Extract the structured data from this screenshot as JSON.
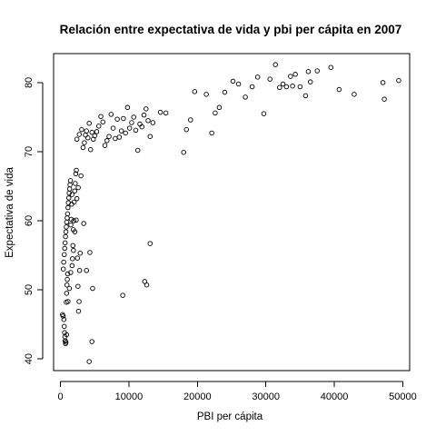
{
  "chart_data": {
    "type": "scatter",
    "title": "Relación entre expectativa de vida y pbi per cápita en 2007",
    "xlabel": "PBI per cápita",
    "ylabel": "Expectativa de vida",
    "xlim": [
      -1000,
      51000
    ],
    "ylim": [
      38.3,
      84.2
    ],
    "xticks": [
      0,
      10000,
      20000,
      30000,
      40000,
      50000
    ],
    "xtick_labels": [
      "0",
      "10000",
      "20000",
      "30000",
      "40000",
      "50000"
    ],
    "yticks": [
      40,
      50,
      60,
      70,
      80
    ],
    "ytick_labels": [
      "40",
      "50",
      "60",
      "70",
      "80"
    ],
    "grid": false,
    "legend": "none",
    "marker": "open-circle",
    "colors": {
      "points": "#000000",
      "axes": "#000000",
      "background": "#ffffff"
    },
    "x": [
      300,
      400,
      500,
      550,
      600,
      650,
      700,
      750,
      800,
      850,
      900,
      950,
      1000,
      1050,
      420,
      480,
      560,
      620,
      680,
      740,
      800,
      860,
      920,
      980,
      1040,
      1100,
      1160,
      1220,
      1280,
      1340,
      1400,
      1460,
      1520,
      1580,
      1640,
      1700,
      1760,
      1820,
      1880,
      1940,
      2000,
      2080,
      2160,
      2240,
      2320,
      2400,
      2480,
      2560,
      2640,
      2720,
      2800,
      2880,
      700,
      900,
      1100,
      1300,
      1500,
      1700,
      1900,
      2100,
      2300,
      2600,
      3000,
      3400,
      3800,
      4200,
      4600,
      2400,
      2750,
      3100,
      3300,
      3500,
      3650,
      3800,
      4000,
      4200,
      4400,
      4600,
      4800,
      5000,
      5300,
      5600,
      5900,
      6200,
      6500,
      6800,
      7100,
      7400,
      7700,
      8000,
      8300,
      8600,
      8900,
      9200,
      9500,
      9800,
      10100,
      10400,
      10700,
      11000,
      11300,
      11600,
      11900,
      12200,
      12500,
      12800,
      13100,
      13500,
      4300,
      4700,
      9100,
      12300,
      12600,
      13100,
      14600,
      15400,
      18000,
      18400,
      19000,
      19600,
      21300,
      22100,
      22600,
      23200,
      24000,
      25200,
      26000,
      27000,
      28000,
      28800,
      29700,
      30600,
      31400,
      32000,
      33000,
      33600,
      34300,
      35000,
      35800,
      36500,
      37500,
      39500,
      40700,
      42900,
      47100,
      47300,
      49400,
      36200,
      32500,
      33900
    ],
    "y": [
      46.4,
      46.2,
      45.7,
      44.7,
      43.8,
      43.2,
      42.6,
      42.2,
      42.4,
      48.2,
      49.5,
      50.7,
      51.5,
      52.3,
      53.0,
      54.0,
      55.1,
      56.0,
      56.8,
      57.7,
      58.4,
      59.1,
      59.8,
      60.4,
      61.0,
      61.9,
      62.6,
      63.3,
      64.0,
      64.6,
      65.2,
      65.8,
      59.4,
      60.2,
      62.4,
      63.8,
      54.5,
      56.4,
      58.7,
      60.0,
      62.7,
      64.3,
      65.4,
      66.8,
      67.3,
      63.2,
      54.6,
      50.5,
      46.9,
      48.3,
      52.8,
      55.3,
      42.6,
      43.5,
      48.3,
      50.2,
      52.5,
      53.5,
      55.7,
      58.4,
      60.1,
      64.8,
      66.5,
      59.6,
      52.8,
      39.6,
      42.5,
      71.8,
      72.5,
      73.2,
      70.6,
      71.3,
      72.4,
      73.0,
      72.0,
      74.1,
      70.3,
      72.8,
      71.8,
      72.3,
      72.9,
      73.7,
      75.1,
      74.3,
      70.9,
      71.6,
      72.2,
      75.4,
      73.4,
      71.9,
      74.7,
      72.1,
      73.0,
      74.8,
      72.7,
      76.4,
      73.4,
      74.2,
      75.0,
      73.1,
      70.2,
      74.0,
      73.6,
      75.3,
      76.2,
      74.5,
      72.2,
      74.2,
      55.4,
      50.2,
      49.2,
      51.2,
      50.7,
      56.7,
      75.7,
      75.6,
      69.9,
      73.2,
      74.6,
      78.7,
      78.3,
      72.7,
      75.6,
      76.4,
      78.6,
      80.2,
      79.8,
      77.9,
      79.4,
      80.8,
      75.5,
      80.5,
      82.6,
      79.3,
      79.4,
      80.9,
      81.2,
      79.4,
      78.1,
      80.1,
      81.7,
      82.2,
      79.0,
      78.3,
      80.0,
      77.6,
      80.3,
      81.6,
      79.8,
      79.5
    ]
  }
}
